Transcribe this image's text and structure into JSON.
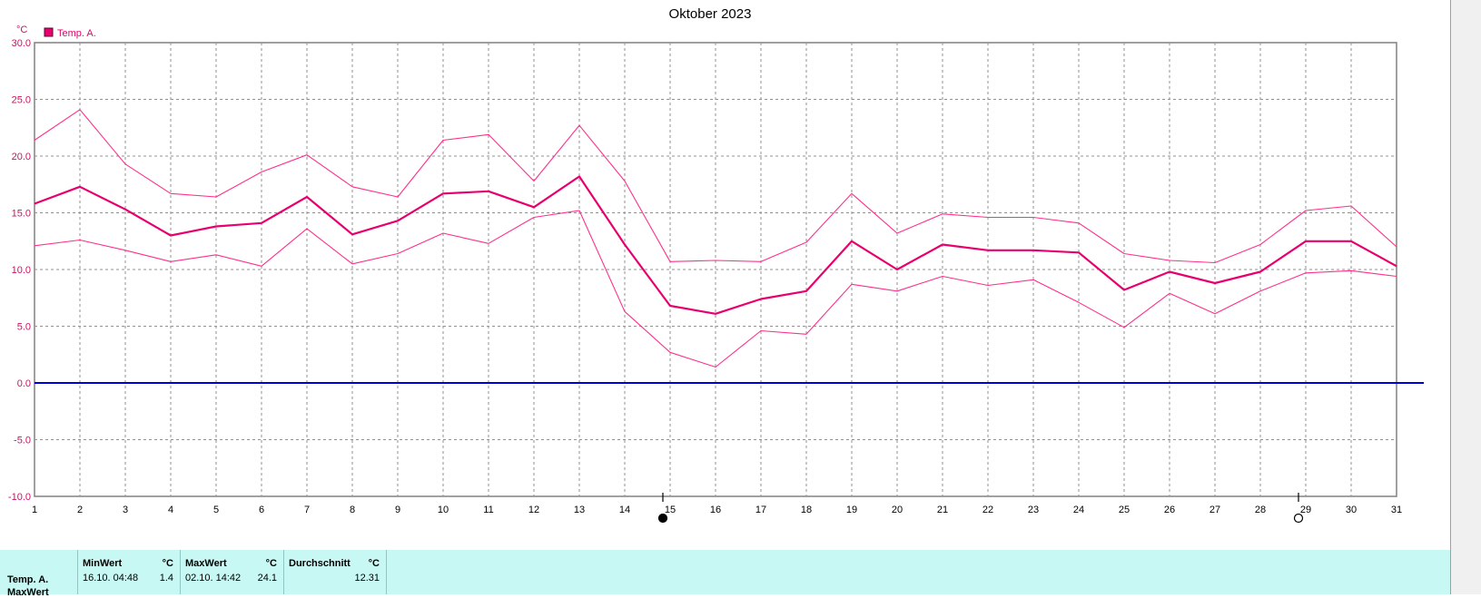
{
  "chart_data": {
    "type": "line",
    "title": "Oktober 2023",
    "y_unit": "°C",
    "legend": [
      "Temp. A."
    ],
    "legend_placement": "top-left",
    "x": [
      1,
      2,
      3,
      4,
      5,
      6,
      7,
      8,
      9,
      10,
      11,
      12,
      13,
      14,
      15,
      16,
      17,
      18,
      19,
      20,
      21,
      22,
      23,
      24,
      25,
      26,
      27,
      28,
      29,
      30,
      31
    ],
    "ylim": [
      -10,
      30
    ],
    "yticks": [
      "30.0",
      "25.0",
      "20.0",
      "15.0",
      "10.0",
      "5.0",
      "0.0",
      "-5.0",
      "-10.0"
    ],
    "grid": true,
    "reference_line": {
      "y": 0.0,
      "color": "#0000dd"
    },
    "series": [
      {
        "role": "max",
        "color": "#ff2f8c",
        "values": [
          21.4,
          24.1,
          19.3,
          16.7,
          16.4,
          18.6,
          20.1,
          17.3,
          16.4,
          21.4,
          21.9,
          17.8,
          22.7,
          17.8,
          10.7,
          10.8,
          10.7,
          12.4,
          16.7,
          13.2,
          14.9,
          14.6,
          14.6,
          14.1,
          11.4,
          10.8,
          10.6,
          12.2,
          15.2,
          15.6,
          12.0
        ]
      },
      {
        "role": "avg",
        "color": "#e8006e",
        "values": [
          15.8,
          17.3,
          15.3,
          13.0,
          13.8,
          14.1,
          16.4,
          13.1,
          14.3,
          16.7,
          16.9,
          15.5,
          18.2,
          12.2,
          6.8,
          6.1,
          7.4,
          8.1,
          12.5,
          10.0,
          12.2,
          11.7,
          11.7,
          11.5,
          8.2,
          9.8,
          8.8,
          9.8,
          12.5,
          12.5,
          10.3
        ]
      },
      {
        "role": "min",
        "color": "#ff2f8c",
        "values": [
          12.1,
          12.6,
          11.7,
          10.7,
          11.3,
          10.3,
          13.6,
          10.5,
          11.4,
          13.2,
          12.3,
          14.6,
          15.2,
          6.3,
          2.7,
          1.4,
          4.6,
          4.3,
          8.7,
          8.1,
          9.4,
          8.6,
          9.1,
          7.1,
          4.9,
          7.9,
          6.1,
          8.1,
          9.7,
          9.9,
          9.4
        ]
      }
    ],
    "moon_markers": [
      {
        "x": 15,
        "phase": "new"
      },
      {
        "x": 29,
        "phase": "full"
      }
    ]
  },
  "colors": {
    "axis": "#808080",
    "grid": "#909090",
    "panel_bg": "#c8f8f4"
  },
  "stats": {
    "row_label": "Temp. A.",
    "row_label2": "MaxWert",
    "min": {
      "header": "MinWert",
      "unit": "°C",
      "datetime": "16.10.  04:48",
      "value": "1.4"
    },
    "max": {
      "header": "MaxWert",
      "unit": "°C",
      "datetime": "02.10.  14:42",
      "value": "24.1"
    },
    "avg": {
      "header": "Durchschnitt",
      "unit": "°C",
      "value": "12.31"
    }
  }
}
